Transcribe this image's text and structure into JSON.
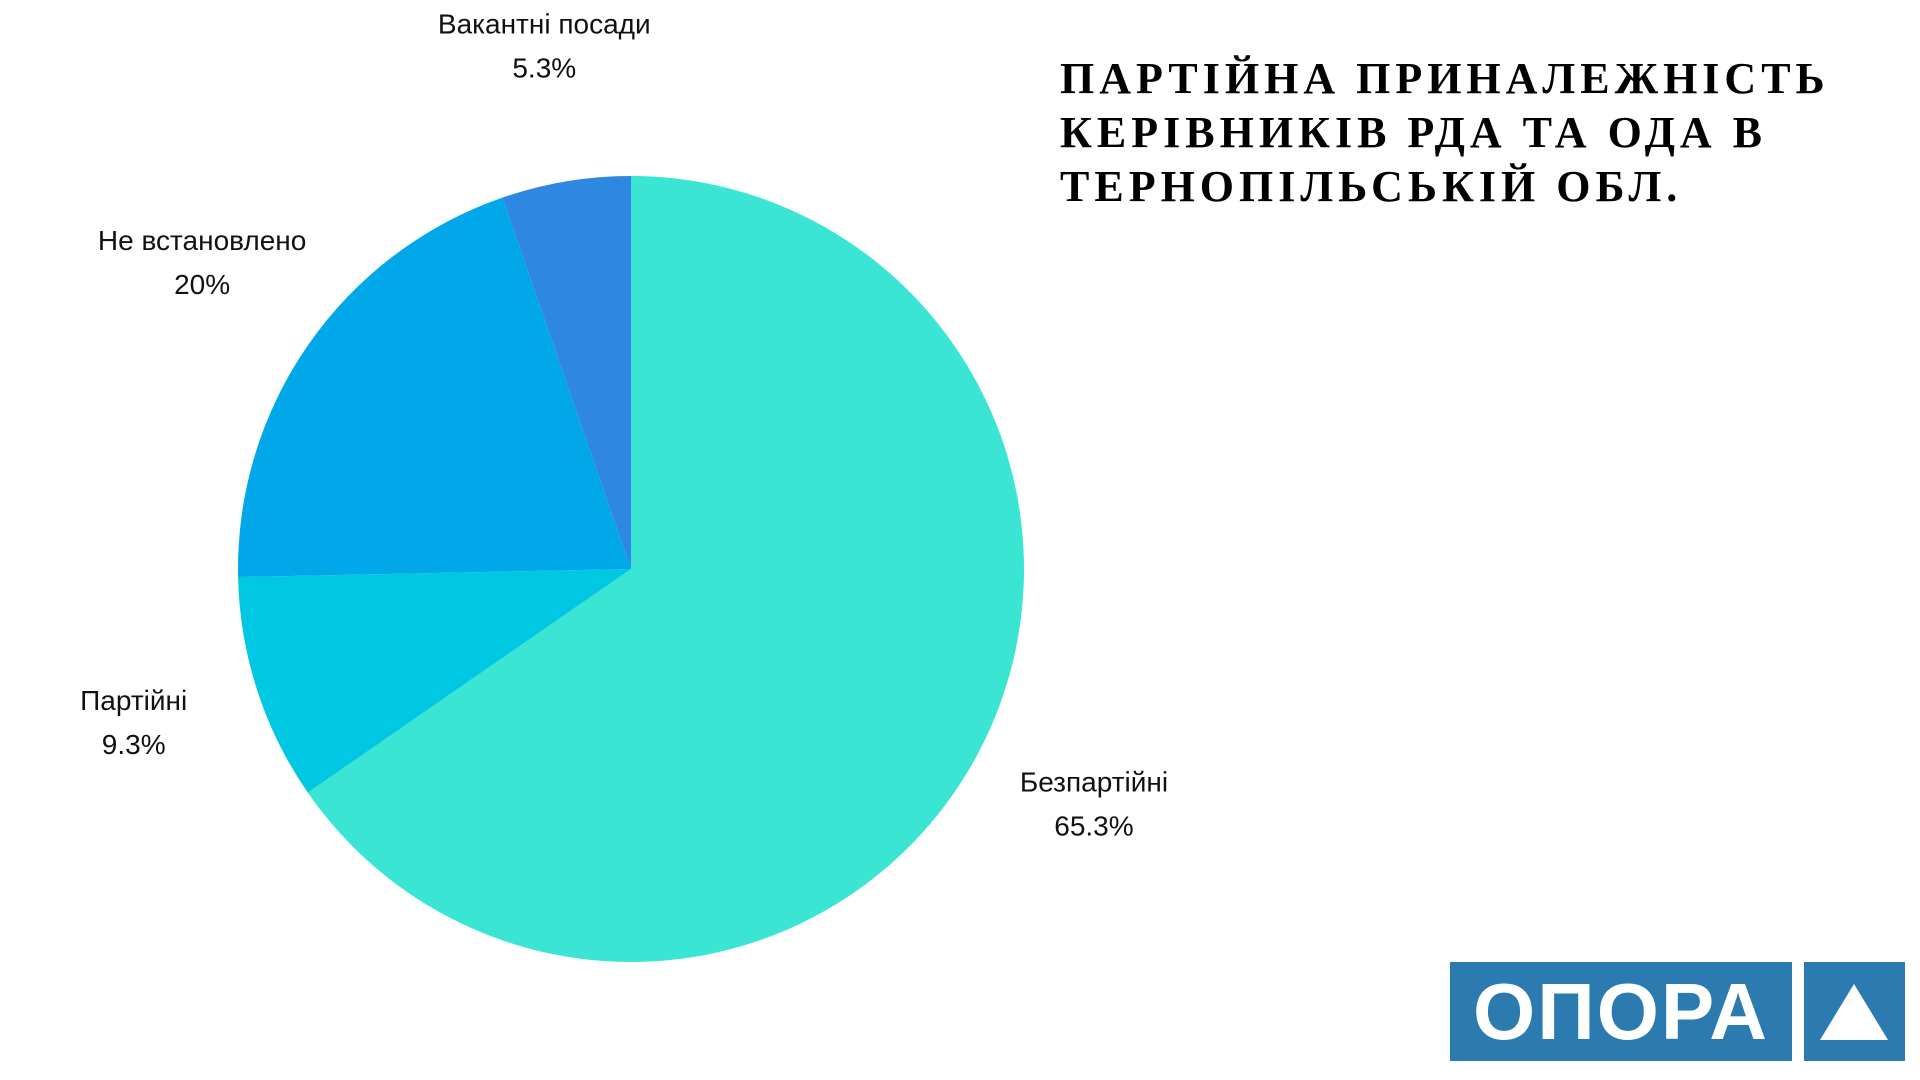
{
  "chart_data": {
    "type": "pie",
    "title": "ПАРТІЙНА ПРИНАЛЕЖНІСТЬ КЕРІВНИКІВ РДА ТА ОДА В ТЕРНОПІЛЬСЬКІЙ ОБЛ.",
    "categories": [
      "Безпартійні",
      "Партійні",
      "Не встановлено",
      "Вакантні посади"
    ],
    "values": [
      65.3,
      9.3,
      20,
      5.3
    ],
    "value_labels": [
      "65.3%",
      "9.3%",
      "20%",
      "5.3%"
    ],
    "colors": [
      "#3ae5d4",
      "#00c8e3",
      "#00a8ea",
      "#2e87e0"
    ]
  },
  "logo": "ОПОРА"
}
